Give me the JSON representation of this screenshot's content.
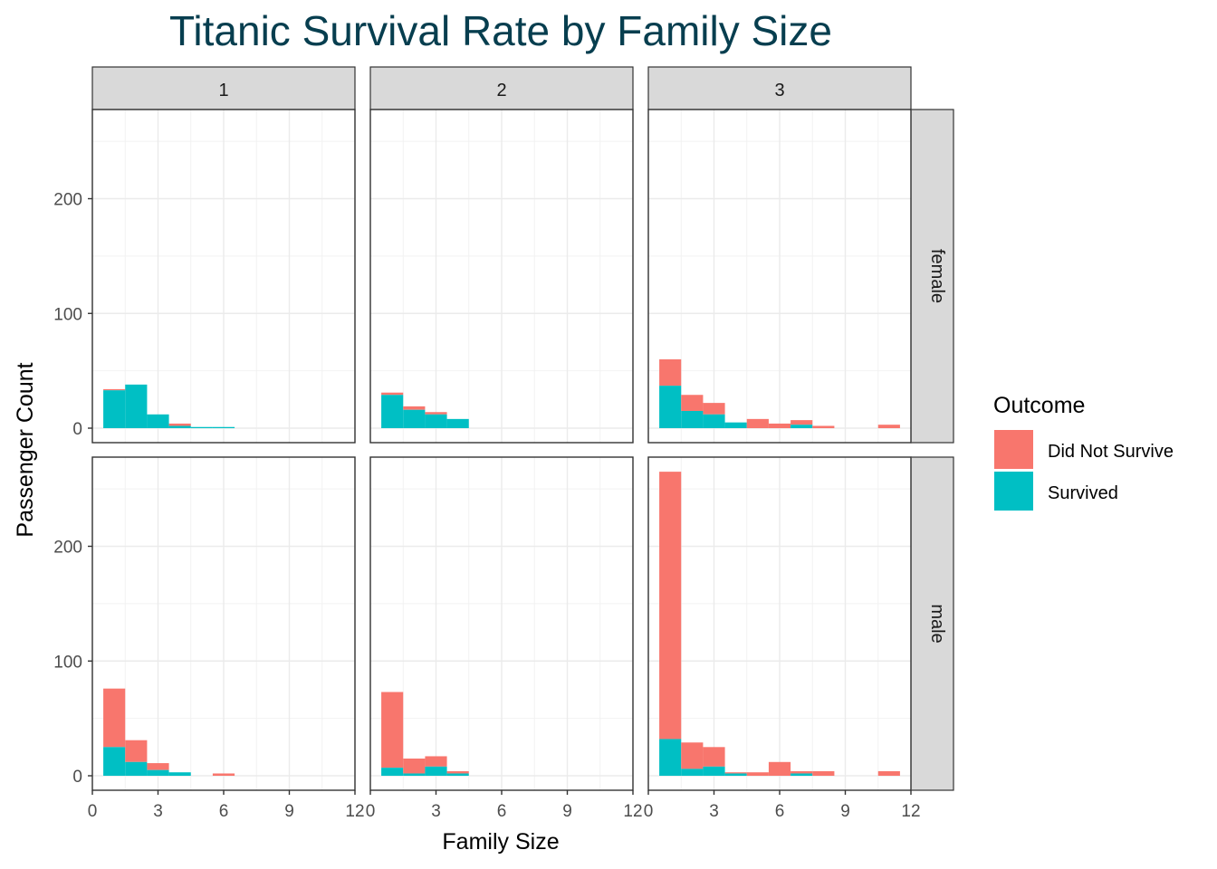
{
  "chart_data": {
    "type": "bar",
    "title": "Titanic Survival Rate by Family Size",
    "xlabel": "Family Size",
    "ylabel": "Passenger Count",
    "xlim": [
      0,
      12
    ],
    "ylim": [
      0,
      275
    ],
    "x_ticks": [
      0,
      3,
      6,
      9,
      12
    ],
    "x_tick_labels": [
      "0",
      "3",
      "6",
      "9",
      "12"
    ],
    "y_ticks": [
      0,
      100,
      200
    ],
    "y_tick_labels": [
      "0",
      "100",
      "200"
    ],
    "grid": true,
    "stacked": true,
    "bin_width": 1,
    "col_facets": [
      "1",
      "2",
      "3"
    ],
    "row_facets": [
      "female",
      "male"
    ],
    "legend": {
      "title": "Outcome",
      "position": "right",
      "entries": [
        {
          "name": "Did Not Survive",
          "color": "#F8766D"
        },
        {
          "name": "Survived",
          "color": "#00BFC4"
        }
      ]
    },
    "categories": [
      1,
      2,
      3,
      4,
      5,
      6,
      7,
      8,
      9,
      10,
      11
    ],
    "panels": [
      {
        "row": "female",
        "col": "1",
        "survived": [
          33,
          38,
          12,
          2,
          1,
          1,
          0,
          0,
          0,
          0,
          0
        ],
        "did_not_survive": [
          1,
          0,
          0,
          2,
          0,
          0,
          0,
          0,
          0,
          0,
          0
        ]
      },
      {
        "row": "female",
        "col": "2",
        "survived": [
          29,
          16,
          12,
          8,
          0,
          0,
          0,
          0,
          0,
          0,
          0
        ],
        "did_not_survive": [
          2,
          3,
          2,
          0,
          0,
          0,
          0,
          0,
          0,
          0,
          0
        ]
      },
      {
        "row": "female",
        "col": "3",
        "survived": [
          37,
          15,
          12,
          5,
          0,
          0,
          3,
          0,
          0,
          0,
          0
        ],
        "did_not_survive": [
          23,
          14,
          10,
          0,
          8,
          4,
          4,
          2,
          0,
          0,
          3
        ]
      },
      {
        "row": "male",
        "col": "1",
        "survived": [
          25,
          12,
          5,
          3,
          0,
          0,
          0,
          0,
          0,
          0,
          0
        ],
        "did_not_survive": [
          51,
          19,
          6,
          0,
          0,
          2,
          0,
          0,
          0,
          0,
          0
        ]
      },
      {
        "row": "male",
        "col": "2",
        "survived": [
          7,
          2,
          8,
          2,
          0,
          0,
          0,
          0,
          0,
          0,
          0
        ],
        "did_not_survive": [
          66,
          13,
          9,
          2,
          0,
          0,
          0,
          0,
          0,
          0,
          0
        ]
      },
      {
        "row": "male",
        "col": "3",
        "survived": [
          32,
          6,
          8,
          2,
          0,
          0,
          2,
          0,
          0,
          0,
          0
        ],
        "did_not_survive": [
          233,
          23,
          17,
          1,
          3,
          12,
          2,
          4,
          0,
          0,
          4
        ]
      }
    ]
  }
}
